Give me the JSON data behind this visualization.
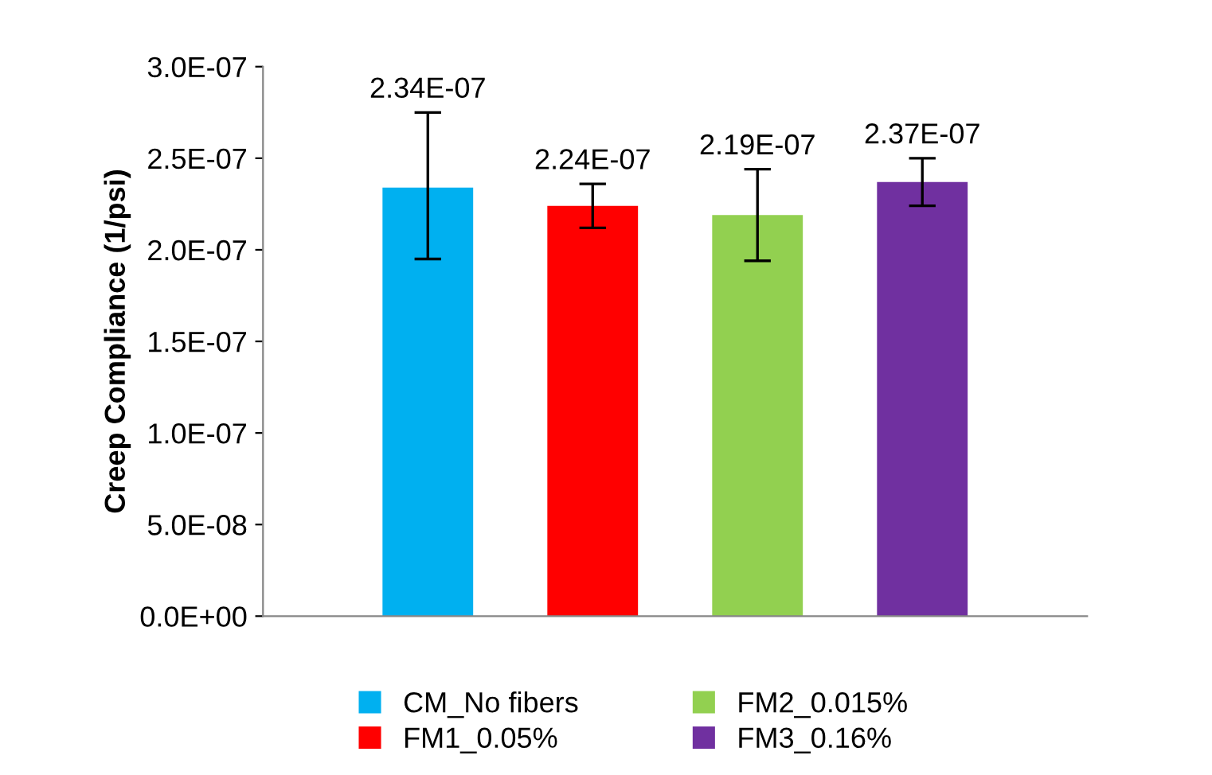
{
  "chart_data": {
    "type": "bar",
    "ylabel": "Creep Compliance (1/psi)",
    "categories": [
      null
    ],
    "series": [
      {
        "name": "CM_No fibers",
        "color": "#00b0f0",
        "values": [
          2.34e-07
        ],
        "errors": [
          [
            1.95e-07,
            2.75e-07
          ]
        ],
        "value_labels": [
          "2.34E-07"
        ]
      },
      {
        "name": "FM1_0.05%",
        "color": "#ff0000",
        "values": [
          2.24e-07
        ],
        "errors": [
          [
            2.12e-07,
            2.36e-07
          ]
        ],
        "value_labels": [
          "2.24E-07"
        ]
      },
      {
        "name": "FM2_0.015%",
        "color": "#92d050",
        "values": [
          2.19e-07
        ],
        "errors": [
          [
            1.94e-07,
            2.44e-07
          ]
        ],
        "value_labels": [
          "2.19E-07"
        ]
      },
      {
        "name": "FM3_0.16%",
        "color": "#7030a0",
        "values": [
          2.37e-07
        ],
        "errors": [
          [
            2.24e-07,
            2.5e-07
          ]
        ],
        "value_labels": [
          "2.37E-07"
        ]
      }
    ],
    "ylim": [
      0,
      3e-07
    ],
    "yticks": [
      {
        "value": 0,
        "label": "0.0E+00"
      },
      {
        "value": 5e-08,
        "label": "5.0E-08"
      },
      {
        "value": 1e-07,
        "label": "1.0E-07"
      },
      {
        "value": 1.5e-07,
        "label": "1.5E-07"
      },
      {
        "value": 2e-07,
        "label": "2.0E-07"
      },
      {
        "value": 2.5e-07,
        "label": "2.5E-07"
      },
      {
        "value": 3e-07,
        "label": "3.0E-07"
      }
    ],
    "grid": false,
    "legend": "bottom"
  }
}
